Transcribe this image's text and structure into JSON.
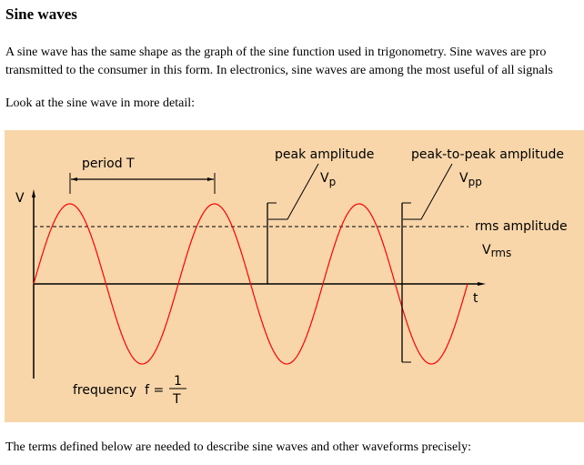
{
  "heading": "Sine waves",
  "intro_lines": [
    "A sine wave has the same shape as the graph of the sine function used in trigonometry. Sine waves are pro",
    "transmitted to the consumer in this form. In electronics, sine waves are among the most useful of all signals"
  ],
  "lead_in": "Look at the sine wave in more detail:",
  "diagram": {
    "background": "#f8d6aa",
    "wave_color": "#ff0000",
    "cycles": 3,
    "labels": {
      "period": "period T",
      "peak": "peak amplitude",
      "vp": "V",
      "vp_sub": "p",
      "peak_to_peak": "peak-to-peak amplitude",
      "vpp": "V",
      "vpp_sub": "pp",
      "rms": "rms amplitude",
      "vrms": "V",
      "vrms_sub": "rms",
      "v_axis": "V",
      "t_axis": "t",
      "frequency": "frequency  f =",
      "freq_num": "1",
      "freq_den": "T"
    }
  },
  "closing": "The terms defined below are needed to describe sine waves and other waveforms precisely:"
}
